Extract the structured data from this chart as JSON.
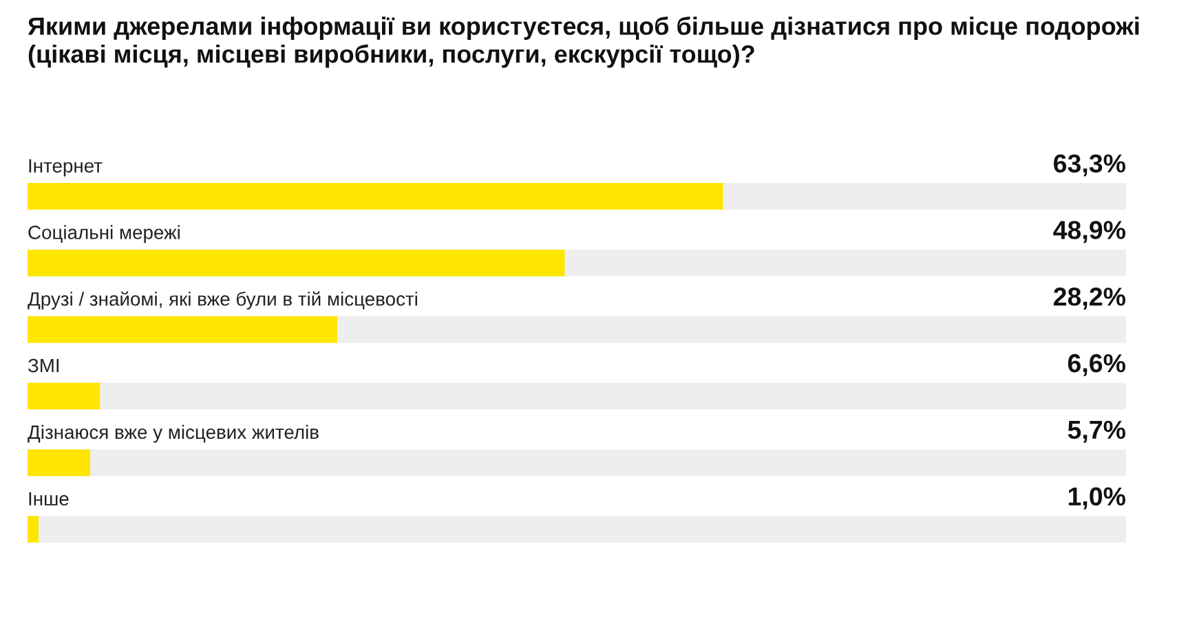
{
  "chart_data": {
    "type": "bar",
    "orientation": "horizontal",
    "title": "Якими джерелами інформації ви користуєтеся, щоб більше дізнатися про місце подорожі (цікаві місця, місцеві виробники, послуги, екскурсії тощо)?",
    "categories": [
      "Інтернет",
      "Соціальні мережі",
      "Друзі / знайомі, які вже були в тій місцевості",
      "ЗМІ",
      "Дізнаюся вже у місцевих жителів",
      "Інше"
    ],
    "values": [
      63.3,
      48.9,
      28.2,
      6.6,
      5.7,
      1.0
    ],
    "value_labels": [
      "63,3%",
      "48,9%",
      "28,2%",
      "6,6%",
      "5,7%",
      "1,0%"
    ],
    "color": "#ffe600",
    "xlim": [
      0,
      100
    ]
  }
}
